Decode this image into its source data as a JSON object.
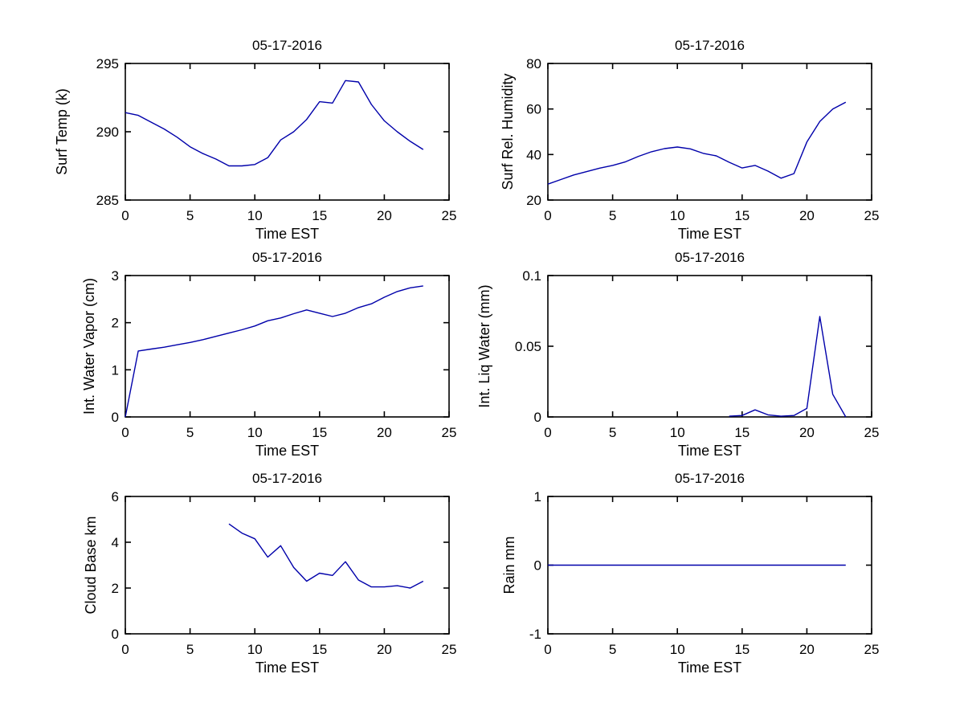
{
  "figure": {
    "background": "#ffffff",
    "line_color": "#0000aa",
    "axis_color": "#000000",
    "text_color": "#000000"
  },
  "chart_data": [
    {
      "id": "surf-temp",
      "type": "line",
      "title": "05-17-2016",
      "xlabel": "Time EST",
      "ylabel": "Surf Temp (k)",
      "xlim": [
        0,
        25
      ],
      "ylim": [
        285,
        295
      ],
      "xticks": [
        0,
        5,
        10,
        15,
        20,
        25
      ],
      "yticks": [
        285,
        290,
        295
      ],
      "grid": false,
      "legend_position": "none",
      "x": [
        0,
        1,
        2,
        3,
        4,
        5,
        6,
        7,
        8,
        9,
        10,
        11,
        12,
        13,
        14,
        15,
        16,
        17,
        18,
        19,
        20,
        21,
        22,
        23
      ],
      "y": [
        291.4,
        291.2,
        290.7,
        290.2,
        289.6,
        288.9,
        288.4,
        288.0,
        287.5,
        287.5,
        287.6,
        288.1,
        289.4,
        290.0,
        290.9,
        292.2,
        292.1,
        293.75,
        293.65,
        292.0,
        290.8,
        290.0,
        289.3,
        288.7
      ]
    },
    {
      "id": "surf-rel-humidity",
      "type": "line",
      "title": "05-17-2016",
      "xlabel": "Time EST",
      "ylabel": "Surf Rel. Humidity",
      "xlim": [
        0,
        25
      ],
      "ylim": [
        20,
        80
      ],
      "xticks": [
        0,
        5,
        10,
        15,
        20,
        25
      ],
      "yticks": [
        20,
        40,
        60,
        80
      ],
      "grid": false,
      "legend_position": "none",
      "x": [
        0,
        1,
        2,
        3,
        4,
        5,
        6,
        7,
        8,
        9,
        10,
        11,
        12,
        13,
        14,
        15,
        16,
        17,
        18,
        19,
        20,
        21,
        22,
        23
      ],
      "y": [
        27,
        29,
        31,
        32.5,
        34,
        35.2,
        36.8,
        39.2,
        41.2,
        42.6,
        43.3,
        42.5,
        40.5,
        39.4,
        36.6,
        34.1,
        35.2,
        32.7,
        29.6,
        31.6,
        45.5,
        54.5,
        60,
        63
      ]
    },
    {
      "id": "int-water-vapor",
      "type": "line",
      "title": "05-17-2016",
      "xlabel": "Time EST",
      "ylabel": "Int. Water Vapor (cm)",
      "xlim": [
        0,
        25
      ],
      "ylim": [
        0,
        3
      ],
      "xticks": [
        0,
        5,
        10,
        15,
        20,
        25
      ],
      "yticks": [
        0,
        1,
        2,
        3
      ],
      "grid": false,
      "legend_position": "none",
      "x": [
        0,
        1,
        2,
        3,
        4,
        5,
        6,
        7,
        8,
        9,
        10,
        11,
        12,
        13,
        14,
        15,
        16,
        17,
        18,
        19,
        20,
        21,
        22,
        23
      ],
      "y": [
        0,
        1.4,
        1.44,
        1.48,
        1.53,
        1.58,
        1.64,
        1.71,
        1.78,
        1.85,
        1.93,
        2.04,
        2.1,
        2.19,
        2.27,
        2.2,
        2.13,
        2.2,
        2.32,
        2.4,
        2.54,
        2.66,
        2.74,
        2.78
      ]
    },
    {
      "id": "int-liq-water",
      "type": "line",
      "title": "05-17-2016",
      "xlabel": "Time EST",
      "ylabel": "Int. Liq Water (mm)",
      "xlim": [
        0,
        25
      ],
      "ylim": [
        0,
        0.1
      ],
      "xticks": [
        0,
        5,
        10,
        15,
        20,
        25
      ],
      "yticks": [
        0,
        0.05,
        0.1
      ],
      "grid": false,
      "legend_position": "none",
      "x": [
        14,
        15,
        16,
        17,
        18,
        19,
        20,
        21,
        22,
        23
      ],
      "y": [
        0.0005,
        0.001,
        0.005,
        0.0015,
        0.0005,
        0.001,
        0.006,
        0.071,
        0.016,
        0
      ]
    },
    {
      "id": "cloud-base",
      "type": "line",
      "title": "05-17-2016",
      "xlabel": "Time EST",
      "ylabel": "Cloud Base km",
      "xlim": [
        0,
        25
      ],
      "ylim": [
        0,
        6
      ],
      "xticks": [
        0,
        5,
        10,
        15,
        20,
        25
      ],
      "yticks": [
        0,
        2,
        4,
        6
      ],
      "grid": false,
      "legend_position": "none",
      "x": [
        8,
        9,
        10,
        11,
        12,
        13,
        14,
        15,
        16,
        17,
        18,
        19,
        20,
        21,
        22,
        23
      ],
      "y": [
        4.8,
        4.4,
        4.15,
        3.35,
        3.85,
        2.9,
        2.3,
        2.65,
        2.55,
        3.15,
        2.35,
        2.05,
        2.05,
        2.1,
        2.0,
        2.3
      ]
    },
    {
      "id": "rain",
      "type": "line",
      "title": "05-17-2016",
      "xlabel": "Time EST",
      "ylabel": "Rain mm",
      "xlim": [
        0,
        25
      ],
      "ylim": [
        -1,
        1
      ],
      "xticks": [
        0,
        5,
        10,
        15,
        20,
        25
      ],
      "yticks": [
        -1,
        0,
        1
      ],
      "grid": false,
      "legend_position": "none",
      "x": [
        0,
        1,
        2,
        3,
        4,
        5,
        6,
        7,
        8,
        9,
        10,
        11,
        12,
        13,
        14,
        15,
        16,
        17,
        18,
        19,
        20,
        21,
        22,
        23
      ],
      "y": [
        0,
        0,
        0,
        0,
        0,
        0,
        0,
        0,
        0,
        0,
        0,
        0,
        0,
        0,
        0,
        0,
        0,
        0,
        0,
        0,
        0,
        0,
        0,
        0
      ]
    }
  ]
}
